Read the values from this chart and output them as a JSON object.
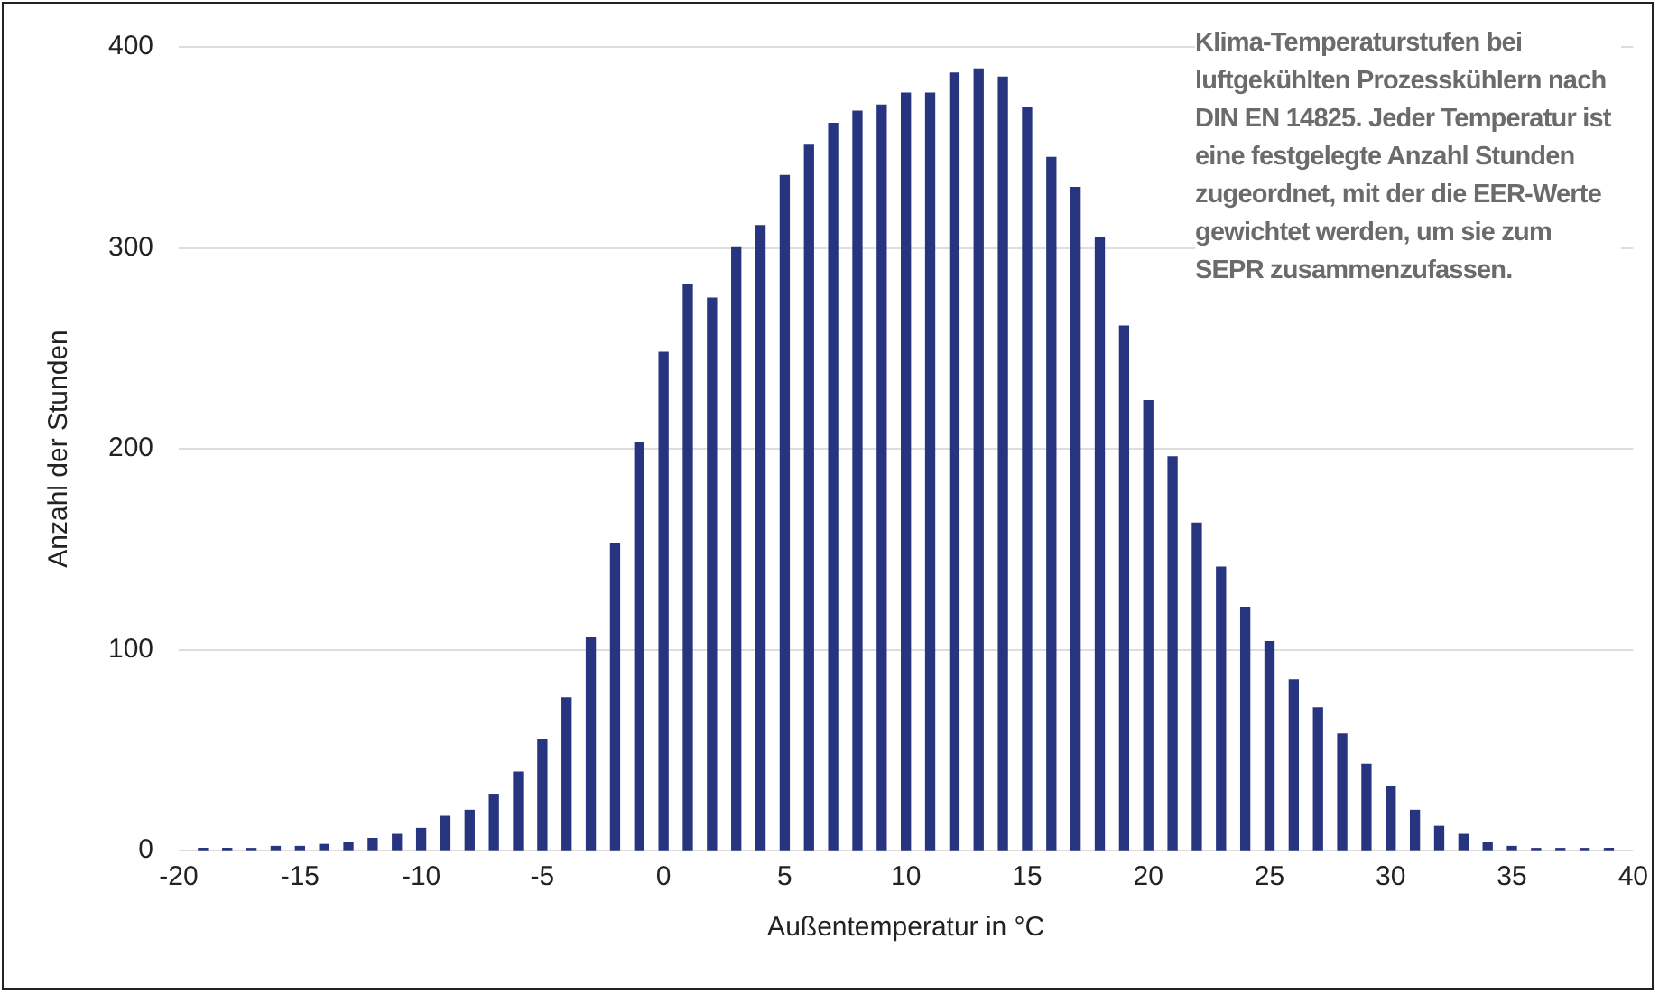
{
  "chart_data": {
    "type": "bar",
    "xlabel": "Außentemperatur in °C",
    "ylabel": "Anzahl der Stunden",
    "annotations": [
      "Klima-Temperaturstufen bei luftgekühlten Prozesskühlern nach DIN EN 14825. Jeder Temperatur ist eine festgelegte Anzahl Stunden zugeordnet, mit der die EER-Werte gewichtet werden, um sie zum SEPR zusammenzufassen."
    ],
    "x": [
      -19,
      -18,
      -17,
      -16,
      -15,
      -14,
      -13,
      -12,
      -11,
      -10,
      -9,
      -8,
      -7,
      -6,
      -5,
      -4,
      -3,
      -2,
      -1,
      0,
      1,
      2,
      3,
      4,
      5,
      6,
      7,
      8,
      9,
      10,
      11,
      12,
      13,
      14,
      15,
      16,
      17,
      18,
      19,
      20,
      21,
      22,
      23,
      24,
      25,
      26,
      27,
      28,
      29,
      30,
      31,
      32,
      33,
      34,
      35,
      36,
      37,
      38,
      39
    ],
    "series": [
      {
        "color": "#27347f",
        "values": [
          1,
          1,
          1,
          2,
          2,
          3,
          4,
          6,
          8,
          11,
          17,
          20,
          28,
          39,
          55,
          76,
          106,
          153,
          203,
          248,
          282,
          275,
          300,
          311,
          336,
          351,
          362,
          368,
          371,
          377,
          377,
          387,
          389,
          385,
          370,
          345,
          330,
          305,
          261,
          224,
          196,
          163,
          141,
          121,
          104,
          85,
          71,
          58,
          43,
          32,
          20,
          12,
          8,
          4,
          2,
          1,
          1,
          1,
          1
        ]
      }
    ],
    "xlim": [
      -20,
      40
    ],
    "xticks": [
      -20,
      -15,
      -10,
      -5,
      0,
      5,
      10,
      15,
      20,
      25,
      30,
      35,
      40
    ],
    "ylim": [
      0,
      400
    ],
    "yticks": [
      0,
      100,
      200,
      300,
      400
    ],
    "grid": "y",
    "legend": false
  }
}
